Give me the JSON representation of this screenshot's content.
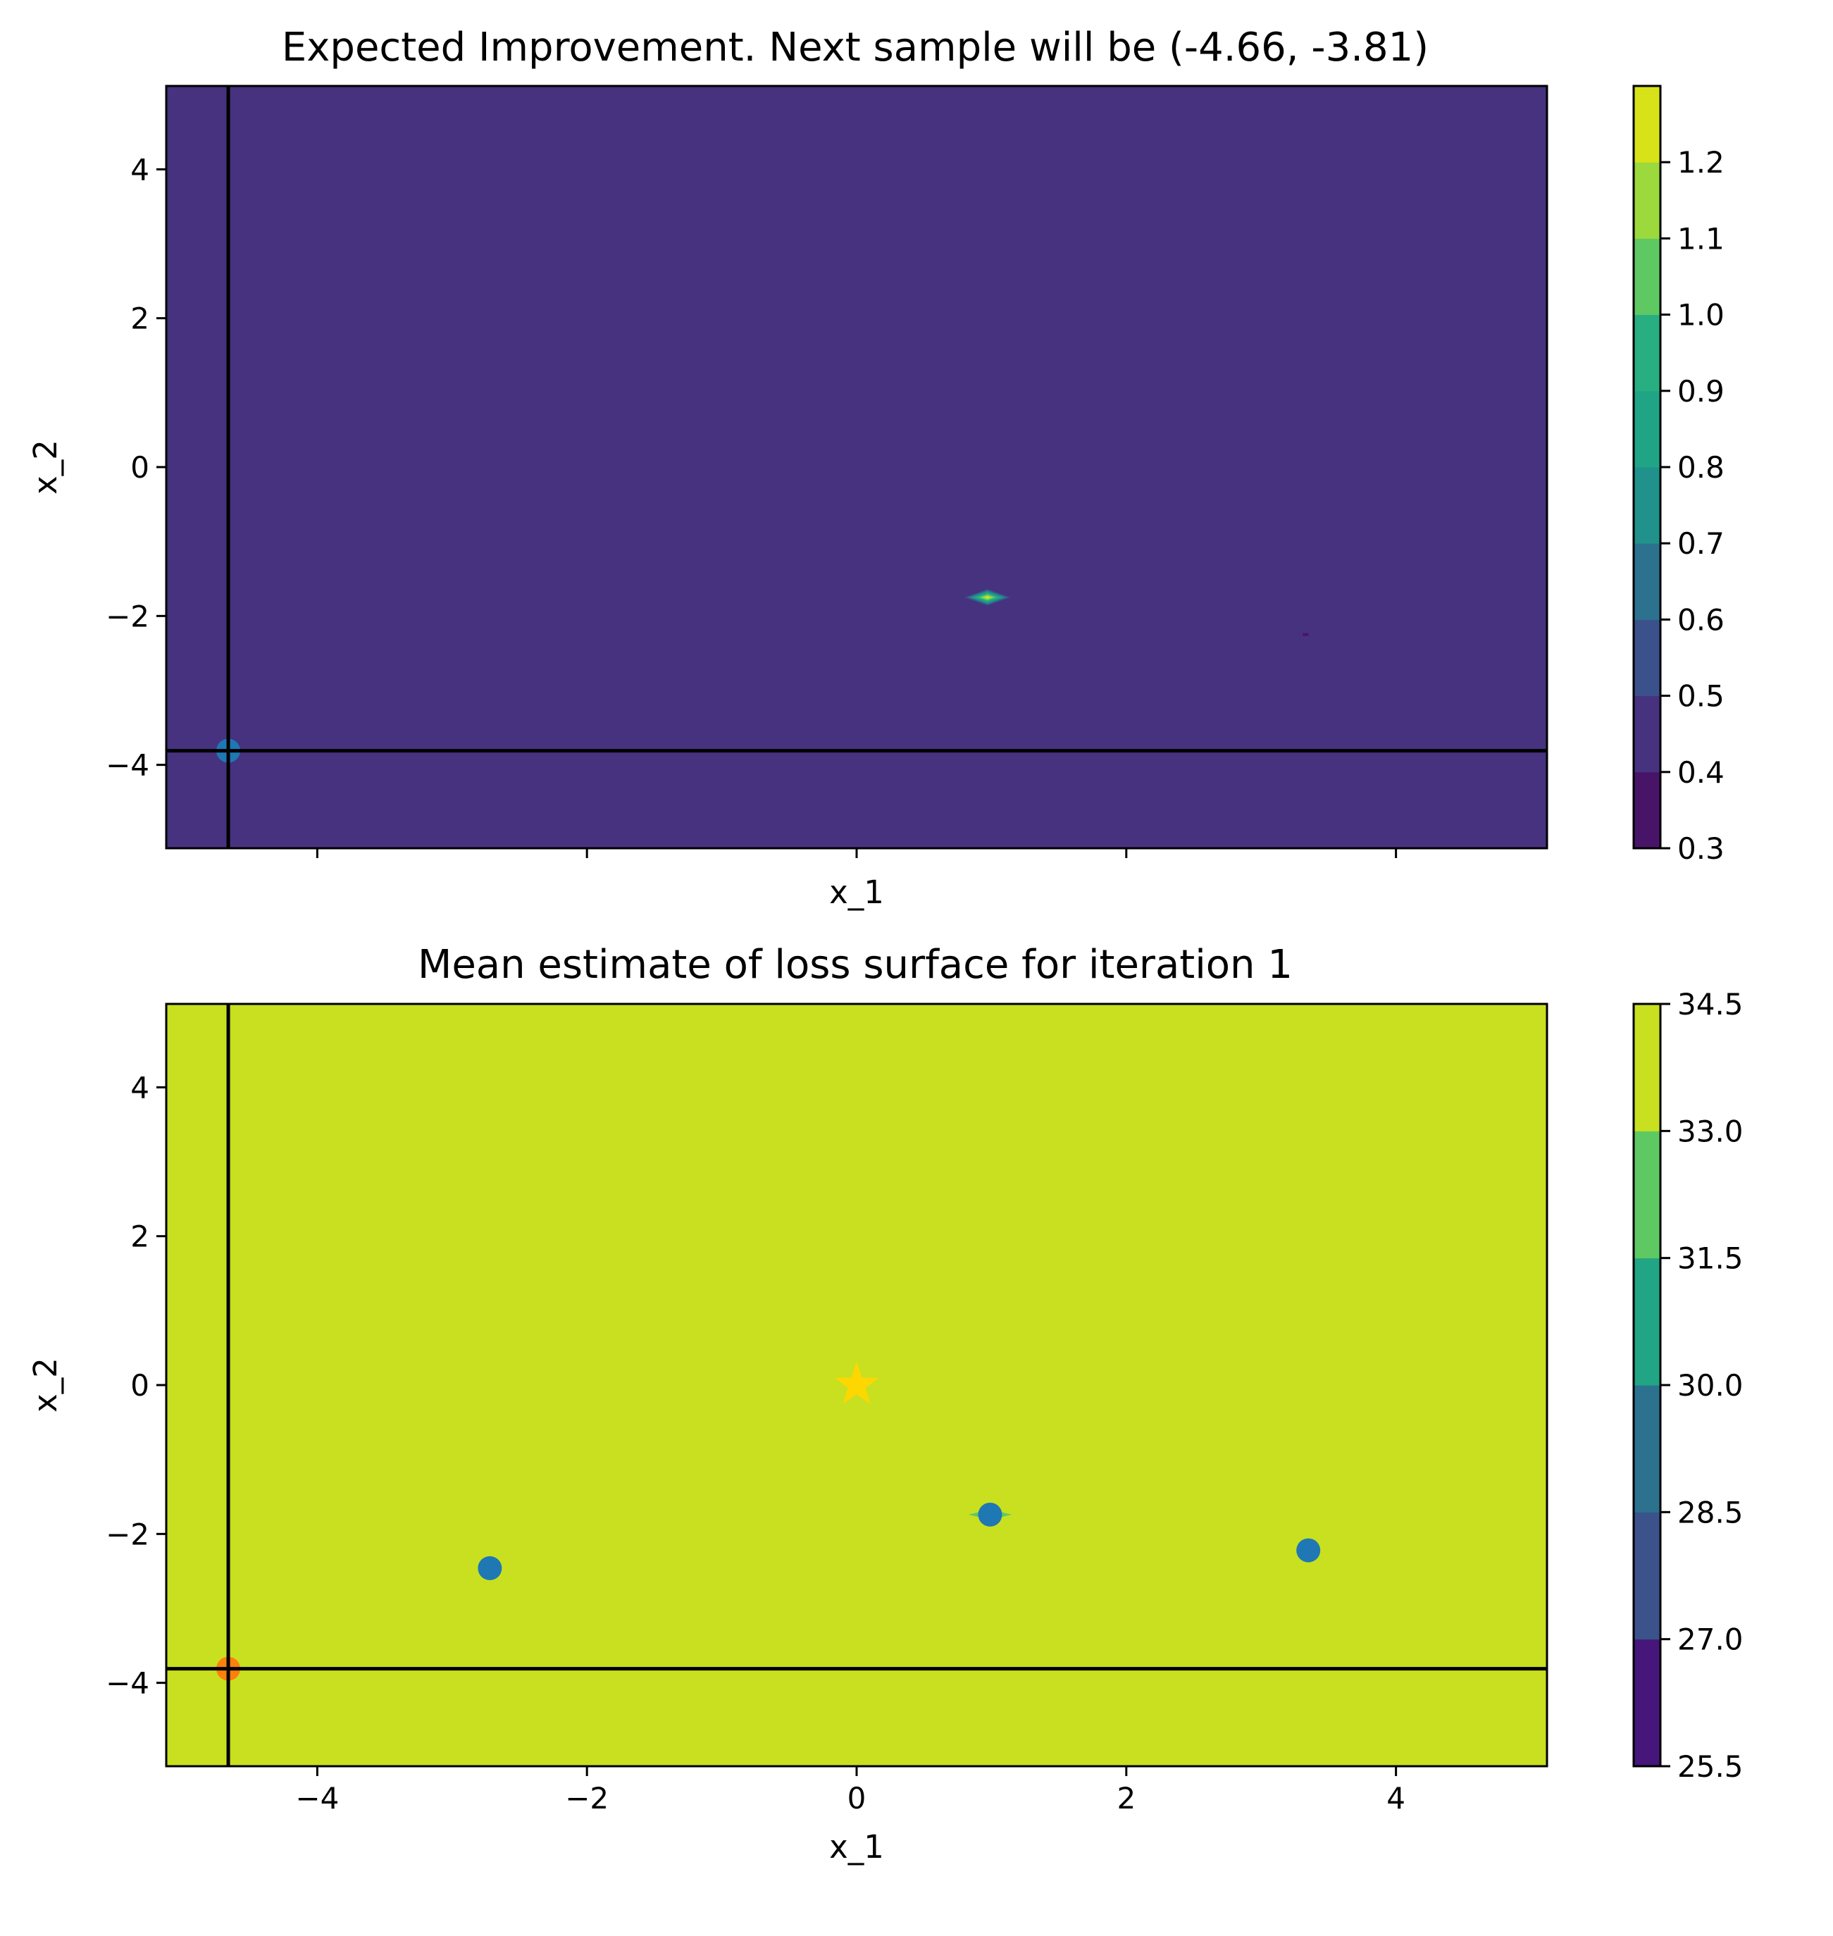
{
  "chart_data": [
    {
      "type": "heatmap",
      "title": "Expected Improvement. Next sample will be (-4.66, -3.81)",
      "xlabel": "x_1",
      "ylabel": "x_2",
      "xlim": [
        -5.12,
        5.12
      ],
      "ylim": [
        -5.12,
        5.12
      ],
      "xticks": [
        -4,
        -2,
        0,
        2,
        4
      ],
      "xticklabels_visible": false,
      "yticks": [
        -4,
        -2,
        0,
        2,
        4
      ],
      "yticklabels": [
        "−4",
        "−2",
        "0",
        "2",
        "4"
      ],
      "background_value": 0.45,
      "background_color": "#46327e",
      "features": [
        {
          "type": "peak",
          "x": 0.97,
          "y": -1.75,
          "rx": 0.17,
          "ry": 0.11,
          "max_level": 1.15
        },
        {
          "type": "dip",
          "x": 3.33,
          "y": -2.25,
          "level": 0.35
        }
      ],
      "crosshair": {
        "x": -4.66,
        "y": -3.81
      },
      "points": [
        {
          "x": -4.66,
          "y": -3.81,
          "color": "#1f77b4"
        }
      ],
      "colorbar": {
        "levels": [
          0.3,
          0.4,
          0.5,
          0.6,
          0.7,
          0.8,
          0.9,
          1.0,
          1.1,
          1.2
        ],
        "ticklabels": [
          "0.3",
          "0.4",
          "0.5",
          "0.6",
          "0.7",
          "0.8",
          "0.9",
          "1.0",
          "1.1",
          "1.2"
        ],
        "colors": [
          "#481467",
          "#46327e",
          "#3b518b",
          "#2c728e",
          "#21918c",
          "#20a486",
          "#28ae80",
          "#5ec962",
          "#9bd93c",
          "#d8e219"
        ]
      },
      "grid": false
    },
    {
      "type": "heatmap",
      "title": "Mean estimate of loss surface for iteration 1",
      "xlabel": "x_1",
      "ylabel": "x_2",
      "xlim": [
        -5.12,
        5.12
      ],
      "ylim": [
        -5.12,
        5.12
      ],
      "xticks": [
        -4,
        -2,
        0,
        2,
        4
      ],
      "xticklabels": [
        "−4",
        "−2",
        "0",
        "2",
        "4"
      ],
      "yticks": [
        -4,
        -2,
        0,
        2,
        4
      ],
      "yticklabels": [
        "−4",
        "−2",
        "0",
        "2",
        "4"
      ],
      "background_value": 33.75,
      "background_color": "#c8e020",
      "features": [
        {
          "type": "dip",
          "x": 0.99,
          "y": -1.74,
          "rx": 0.16,
          "ry": 0.07,
          "level": 32.25
        }
      ],
      "crosshair": {
        "x": -4.66,
        "y": -3.81
      },
      "points": [
        {
          "x": -2.72,
          "y": -2.46,
          "color": "#1f77b4"
        },
        {
          "x": 0.99,
          "y": -1.74,
          "color": "#1f77b4"
        },
        {
          "x": 3.35,
          "y": -2.22,
          "color": "#1f77b4"
        },
        {
          "x": -4.66,
          "y": -3.81,
          "color": "#ff7f0e"
        }
      ],
      "star": {
        "x": 0.0,
        "y": 0.0,
        "color": "#ffd700"
      },
      "colorbar": {
        "levels": [
          25.5,
          27.0,
          28.5,
          30.0,
          31.5,
          33.0,
          34.5
        ],
        "ticklabels": [
          "25.5",
          "27.0",
          "28.5",
          "30.0",
          "31.5",
          "33.0",
          "34.5"
        ],
        "colors": [
          "#46167a",
          "#3b528b",
          "#2c728e",
          "#21a585",
          "#5ec962",
          "#c8e020"
        ]
      },
      "grid": false
    }
  ]
}
